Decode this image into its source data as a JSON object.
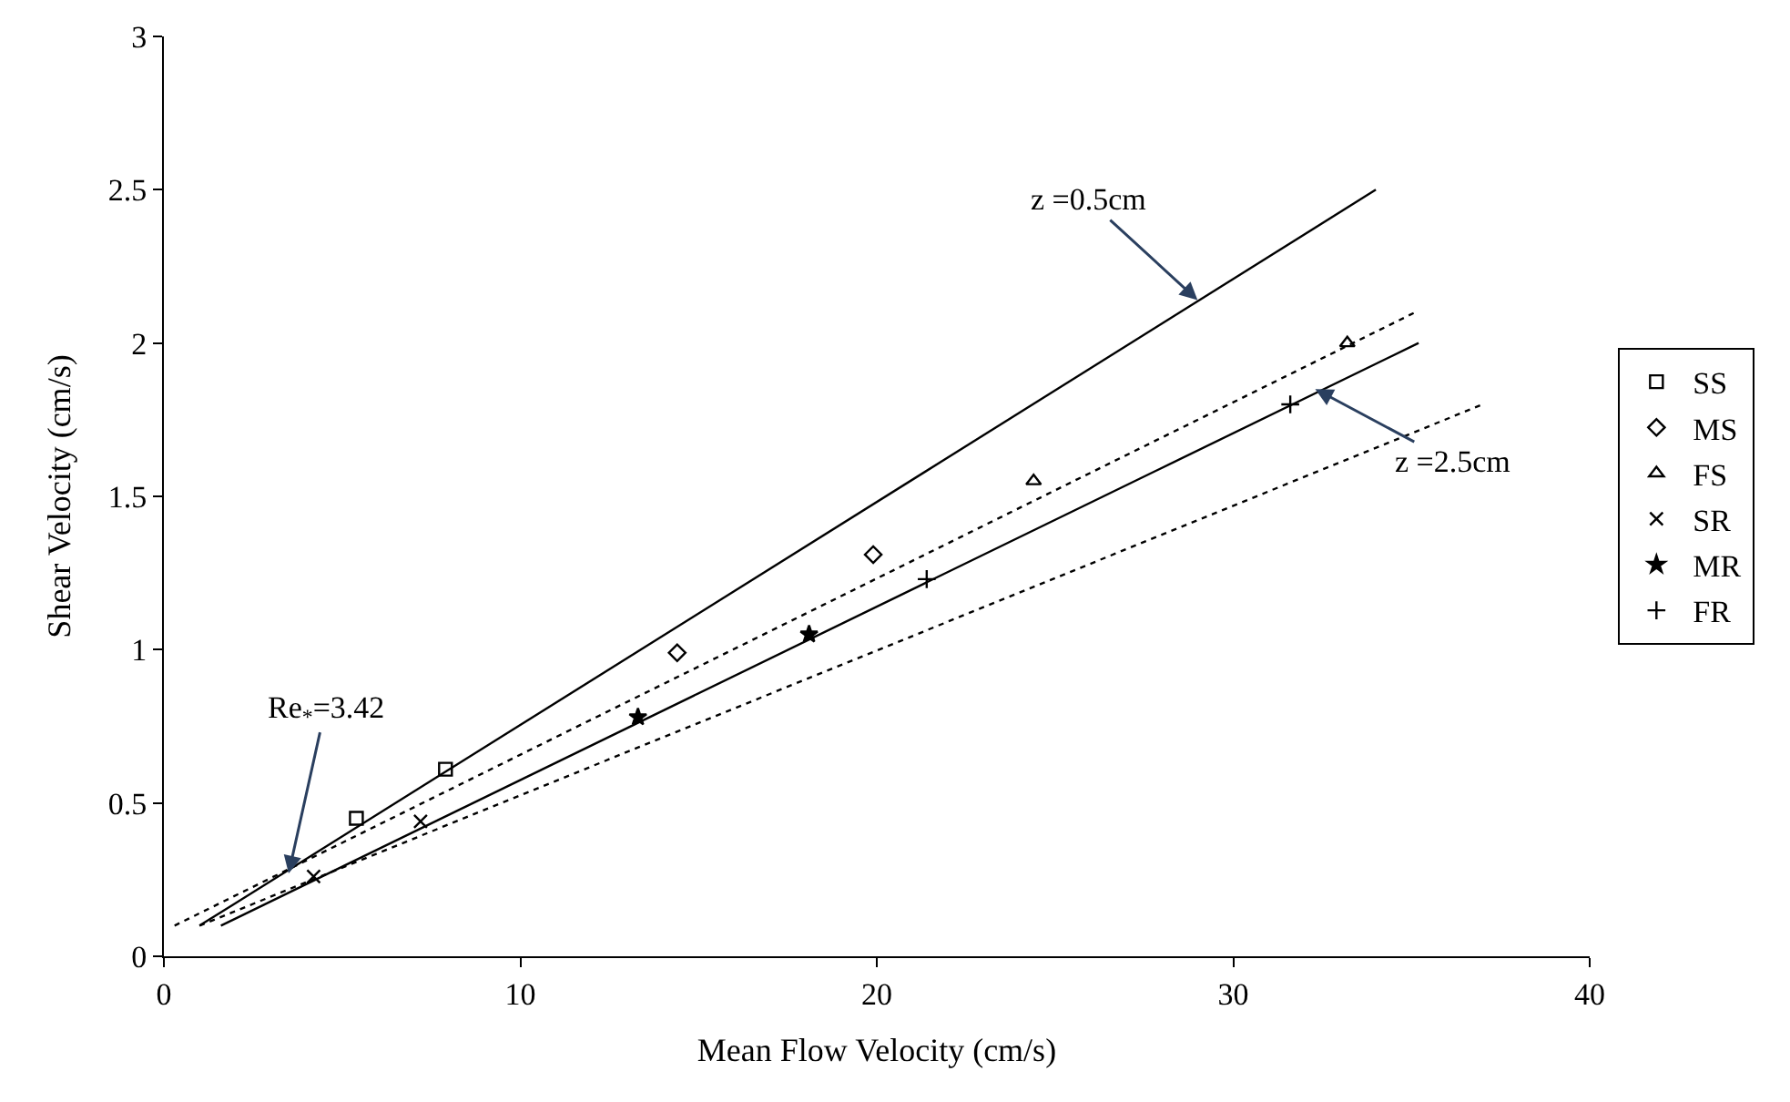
{
  "chart_data": {
    "type": "scatter",
    "xlabel": "Mean Flow Velocity (cm/s)",
    "ylabel": "Shear Velocity (cm/s)",
    "xlim": [
      0,
      40
    ],
    "xticks": [
      0,
      10,
      20,
      30,
      40
    ],
    "ylim": [
      0,
      3
    ],
    "yticks": [
      0,
      0.5,
      1,
      1.5,
      2,
      2.5,
      3
    ],
    "legend": "right",
    "series": [
      {
        "name": "SS",
        "color": "#000000",
        "marker": "square",
        "x": [
          5.4,
          7.9
        ],
        "values": [
          0.45,
          0.61
        ]
      },
      {
        "name": "MS",
        "color": "#000000",
        "marker": "diamond",
        "x": [
          14.4,
          19.9
        ],
        "values": [
          0.99,
          1.31
        ]
      },
      {
        "name": "FS",
        "color": "#000000",
        "marker": "triangle",
        "x": [
          24.4,
          33.2
        ],
        "values": [
          1.55,
          2.0
        ]
      },
      {
        "name": "SR",
        "color": "#000000",
        "marker": "cross",
        "x": [
          4.2,
          7.2
        ],
        "values": [
          0.26,
          0.44
        ]
      },
      {
        "name": "MR",
        "color": "#000000",
        "marker": "star",
        "x": [
          13.3,
          18.1
        ],
        "values": [
          0.78,
          1.05
        ]
      },
      {
        "name": "FR",
        "color": "#000000",
        "marker": "plus",
        "x": [
          21.4,
          31.6
        ],
        "values": [
          1.23,
          1.8
        ]
      },
      {
        "type": "line",
        "color": "#000000",
        "line_style": "solid",
        "x": [
          1.0,
          34.0
        ],
        "values": [
          0.1,
          2.5
        ]
      },
      {
        "type": "line",
        "color": "#000000",
        "line_style": "solid",
        "x": [
          1.6,
          35.2
        ],
        "values": [
          0.1,
          2.0
        ]
      },
      {
        "type": "line",
        "color": "#000000",
        "line_style": "dotted",
        "x": [
          0.3,
          35.1
        ],
        "values": [
          0.1,
          2.1
        ]
      },
      {
        "type": "line",
        "color": "#000000",
        "line_style": "dotted",
        "x": [
          1.0,
          37.0
        ],
        "values": [
          0.1,
          1.8
        ]
      }
    ],
    "annotations": [
      {
        "text": "z =0.5cm",
        "x": 29.0,
        "y": 2.14
      },
      {
        "text": "z =2.5cm",
        "x": 32.3,
        "y": 1.85
      },
      {
        "text": "Re$_{*}$=3.42",
        "x": 3.5,
        "y": 0.27
      }
    ]
  }
}
